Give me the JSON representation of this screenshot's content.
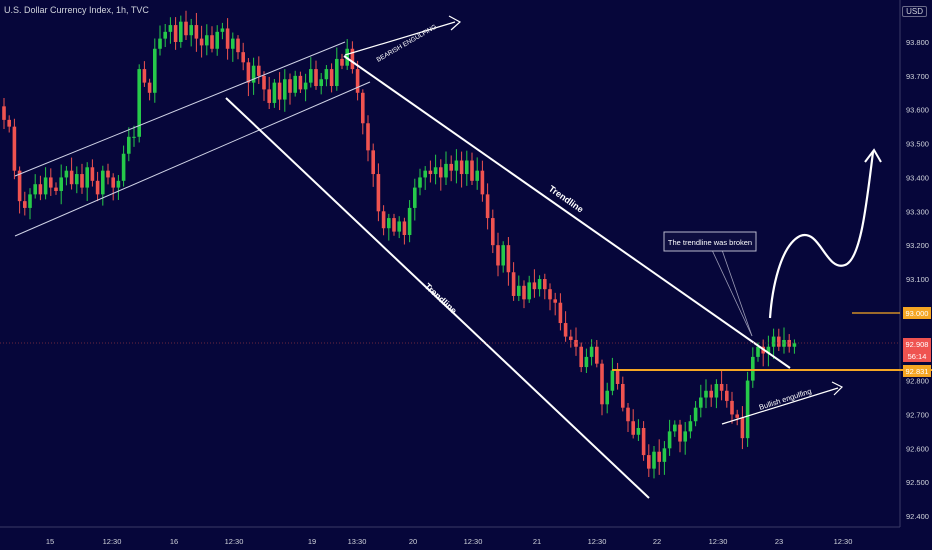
{
  "header": {
    "title": "U.S. Dollar Currency Index, 1h, TVC",
    "currency": "USD"
  },
  "chart_data": {
    "type": "candlestick",
    "ylim": [
      92.35,
      94.0
    ],
    "y_ticks": [
      "93.800",
      "93.700",
      "93.600",
      "93.500",
      "93.400",
      "93.300",
      "93.200",
      "93.100",
      "92.900",
      "92.800",
      "92.700",
      "92.600",
      "92.500",
      "92.400"
    ],
    "y_tick_values": [
      93.8,
      93.7,
      93.6,
      93.5,
      93.4,
      93.3,
      93.2,
      93.1,
      92.9,
      92.8,
      92.7,
      92.6,
      92.5,
      92.4
    ],
    "x_ticks": [
      "15",
      "12:30",
      "16",
      "12:30",
      "19",
      "13:30",
      "20",
      "12:30",
      "21",
      "12:30",
      "22",
      "12:30",
      "23",
      "12:30"
    ],
    "price_labels": [
      {
        "text": "93.000",
        "value": 93.0,
        "color": "#f5a623"
      },
      {
        "text": "92.908",
        "value": 92.908,
        "color": "#ef5350"
      },
      {
        "text": "56:14",
        "value": 92.87,
        "color": "#ef5350"
      },
      {
        "text": "92.831",
        "value": 92.831,
        "color": "#f5a623"
      }
    ],
    "annotations": [
      "BEARISH ENGULFING",
      "Trendline",
      "Trendline",
      "The trendline was broken",
      "Bullish engulfing"
    ],
    "colors": {
      "up": "#26c94a",
      "down": "#ef5350",
      "level": "#f5a623",
      "line": "#ffffff",
      "bg": "#06063a"
    },
    "closes": [
      93.57,
      93.55,
      93.42,
      93.33,
      93.31,
      93.35,
      93.38,
      93.35,
      93.4,
      93.37,
      93.36,
      93.4,
      93.42,
      93.38,
      93.41,
      93.37,
      93.43,
      93.39,
      93.35,
      93.42,
      93.4,
      93.37,
      93.39,
      93.47,
      93.52,
      93.52,
      93.72,
      93.68,
      93.65,
      93.78,
      93.81,
      93.83,
      93.85,
      93.8,
      93.86,
      93.82,
      93.85,
      93.81,
      93.79,
      93.82,
      93.78,
      93.83,
      93.84,
      93.78,
      93.81,
      93.77,
      93.74,
      93.68,
      93.73,
      93.7,
      93.66,
      93.62,
      93.68,
      93.63,
      93.69,
      93.65,
      93.7,
      93.66,
      93.68,
      93.72,
      93.67,
      93.69,
      93.72,
      93.67,
      93.75,
      93.73,
      93.78,
      93.72,
      93.65,
      93.56,
      93.48,
      93.41,
      93.3,
      93.25,
      93.28,
      93.24,
      93.27,
      93.23,
      93.31,
      93.37,
      93.4,
      93.42,
      93.41,
      93.43,
      93.4,
      93.44,
      93.42,
      93.45,
      93.41,
      93.45,
      93.39,
      93.42,
      93.35,
      93.28,
      93.2,
      93.14,
      93.2,
      93.12,
      93.05,
      93.08,
      93.04,
      93.09,
      93.07,
      93.1,
      93.07,
      93.04,
      93.03,
      92.97,
      92.93,
      92.92,
      92.9,
      92.84,
      92.87,
      92.9,
      92.85,
      92.73,
      92.77,
      92.83,
      92.79,
      92.72,
      92.68,
      92.64,
      92.66,
      92.58,
      92.54,
      92.59,
      92.56,
      92.6,
      92.65,
      92.67,
      92.62,
      92.65,
      92.68,
      92.72,
      92.75,
      92.77,
      92.75,
      92.79,
      92.77,
      92.74,
      92.7,
      92.69,
      92.63,
      92.8,
      92.87,
      92.9,
      92.88,
      92.9,
      92.93,
      92.9,
      92.92,
      92.9,
      92.91
    ],
    "trendlines": [
      {
        "label": "channel-upper",
        "points": [
          [
            "15",
            93.34
          ],
          [
            "19 13:30",
            93.85
          ]
        ]
      },
      {
        "label": "channel-lower",
        "points": [
          [
            "15",
            93.17
          ],
          [
            "19 13:30",
            93.7
          ]
        ]
      },
      {
        "label": "Trendline (upper)",
        "points": [
          [
            "19 12:30",
            93.78
          ],
          [
            "23",
            92.8
          ]
        ]
      },
      {
        "label": "Trendline (lower)",
        "points": [
          [
            "16 12:30",
            93.62
          ],
          [
            "22",
            92.47
          ]
        ]
      }
    ],
    "levels": [
      {
        "value": 92.831
      },
      {
        "value": 93.0
      }
    ]
  }
}
